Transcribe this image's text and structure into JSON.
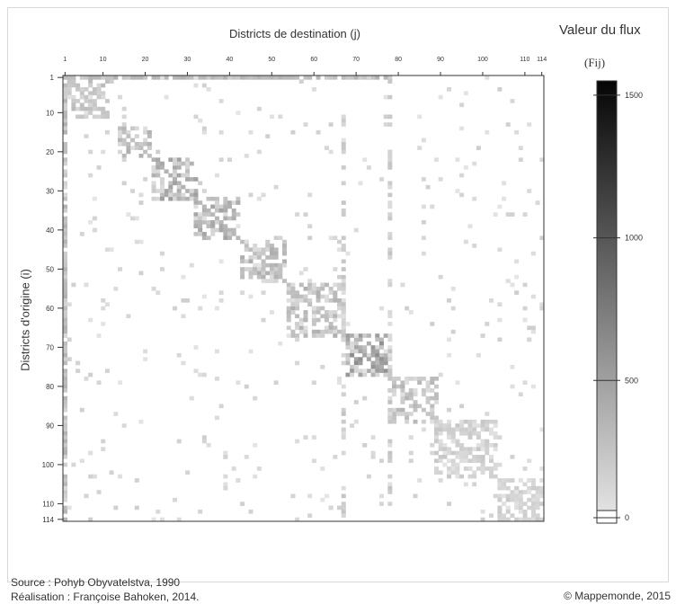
{
  "top_label": "Districts de destination (j)",
  "side_label": "Districts d'origine (i)",
  "legend": {
    "title": "Valeur du flux",
    "unit": "(Fij)",
    "ticks": [
      1500,
      1000,
      500,
      0
    ],
    "max": 1550
  },
  "footer": {
    "source": "Source : Pohyb Obyvatelstva, 1990",
    "author": "Réalisation : Françoise Bahoken, 2014.",
    "copyright": "© Mappemonde, 2015"
  },
  "chart_data": {
    "type": "heatmap",
    "n": 114,
    "x_ticks": [
      1,
      10,
      20,
      30,
      40,
      50,
      60,
      70,
      80,
      90,
      100,
      110,
      114
    ],
    "y_ticks": [
      1,
      10,
      20,
      30,
      40,
      50,
      60,
      70,
      80,
      90,
      100,
      110,
      114
    ],
    "diagonal_blocks": [
      {
        "from": 2,
        "to": 11,
        "level": 420
      },
      {
        "from": 14,
        "to": 21,
        "level": 500
      },
      {
        "from": 22,
        "to": 32,
        "level": 650
      },
      {
        "from": 32,
        "to": 42,
        "level": 600
      },
      {
        "from": 43,
        "to": 53,
        "level": 520
      },
      {
        "from": 54,
        "to": 67,
        "level": 500
      },
      {
        "from": 67,
        "to": 77,
        "level": 800
      },
      {
        "from": 78,
        "to": 89,
        "level": 450
      },
      {
        "from": 89,
        "to": 103,
        "level": 300
      },
      {
        "from": 104,
        "to": 114,
        "level": 280
      }
    ],
    "strong_rows": [
      1
    ],
    "strong_cols": [
      1
    ]
  }
}
